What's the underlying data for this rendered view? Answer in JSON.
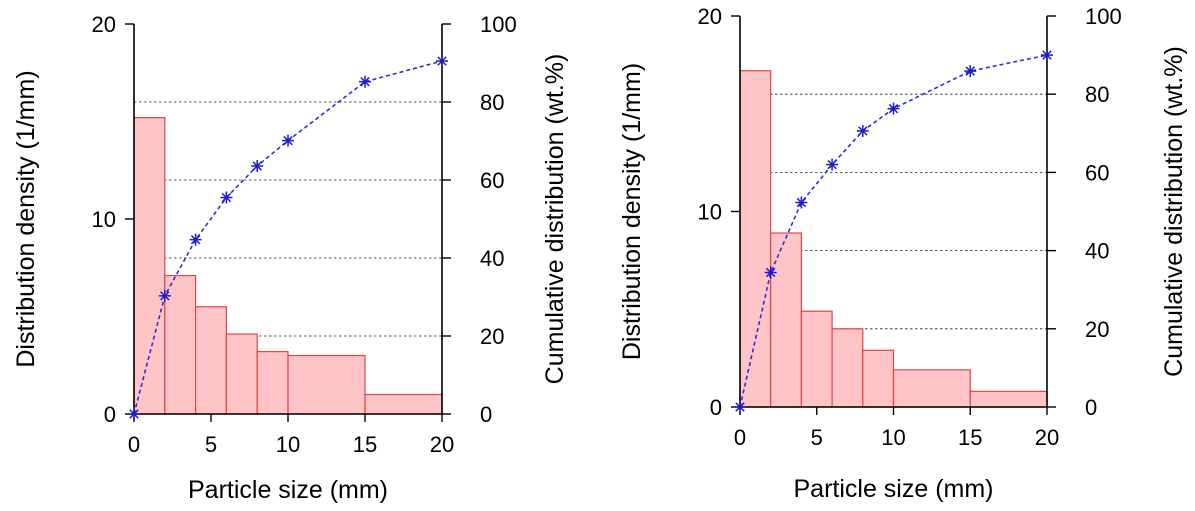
{
  "chart_data": [
    {
      "type": "bar",
      "xlabel": "Particle size (mm)",
      "ylabel": "Distribution density (1/mm)",
      "y2label": "Cumulative distribution (wt.%)",
      "xlim": [
        0,
        20
      ],
      "ylim": [
        0,
        20
      ],
      "y2lim": [
        0,
        100
      ],
      "xticks": [
        0,
        5,
        10,
        15,
        20
      ],
      "yticks": [
        0,
        10,
        20
      ],
      "y2ticks": [
        0,
        20,
        40,
        60,
        80,
        100
      ],
      "grid_y2": [
        20,
        40,
        60,
        80
      ],
      "bins": [
        [
          0,
          2
        ],
        [
          2,
          4
        ],
        [
          4,
          6
        ],
        [
          6,
          8
        ],
        [
          8,
          10
        ],
        [
          10,
          15
        ],
        [
          15,
          20
        ]
      ],
      "values": [
        15.2,
        7.1,
        5.5,
        4.1,
        3.2,
        3.0,
        1.0
      ],
      "cumulative": {
        "x": [
          0,
          2,
          4,
          6,
          8,
          10,
          15,
          20
        ],
        "y": [
          0,
          30.3,
          44.7,
          55.5,
          63.6,
          70.1,
          85.2,
          90.5
        ]
      }
    },
    {
      "type": "bar",
      "xlabel": "Particle size (mm)",
      "ylabel": "Distribution density (1/mm)",
      "y2label": "Cumulative distribution (wt.%)",
      "xlim": [
        0,
        20
      ],
      "ylim": [
        0,
        20
      ],
      "y2lim": [
        0,
        100
      ],
      "xticks": [
        0,
        5,
        10,
        15,
        20
      ],
      "yticks": [
        0,
        10,
        20
      ],
      "y2ticks": [
        0,
        20,
        40,
        60,
        80,
        100
      ],
      "grid_y2": [
        20,
        40,
        60,
        80
      ],
      "bins": [
        [
          0,
          2
        ],
        [
          2,
          4
        ],
        [
          4,
          6
        ],
        [
          6,
          8
        ],
        [
          8,
          10
        ],
        [
          10,
          15
        ],
        [
          15,
          20
        ]
      ],
      "values": [
        17.2,
        8.9,
        4.9,
        4.0,
        2.9,
        1.9,
        0.8
      ],
      "cumulative": {
        "x": [
          0,
          2,
          4,
          6,
          8,
          10,
          15,
          20
        ],
        "y": [
          0,
          34.4,
          52.3,
          62.0,
          70.6,
          76.3,
          85.9,
          90.0
        ]
      }
    }
  ]
}
